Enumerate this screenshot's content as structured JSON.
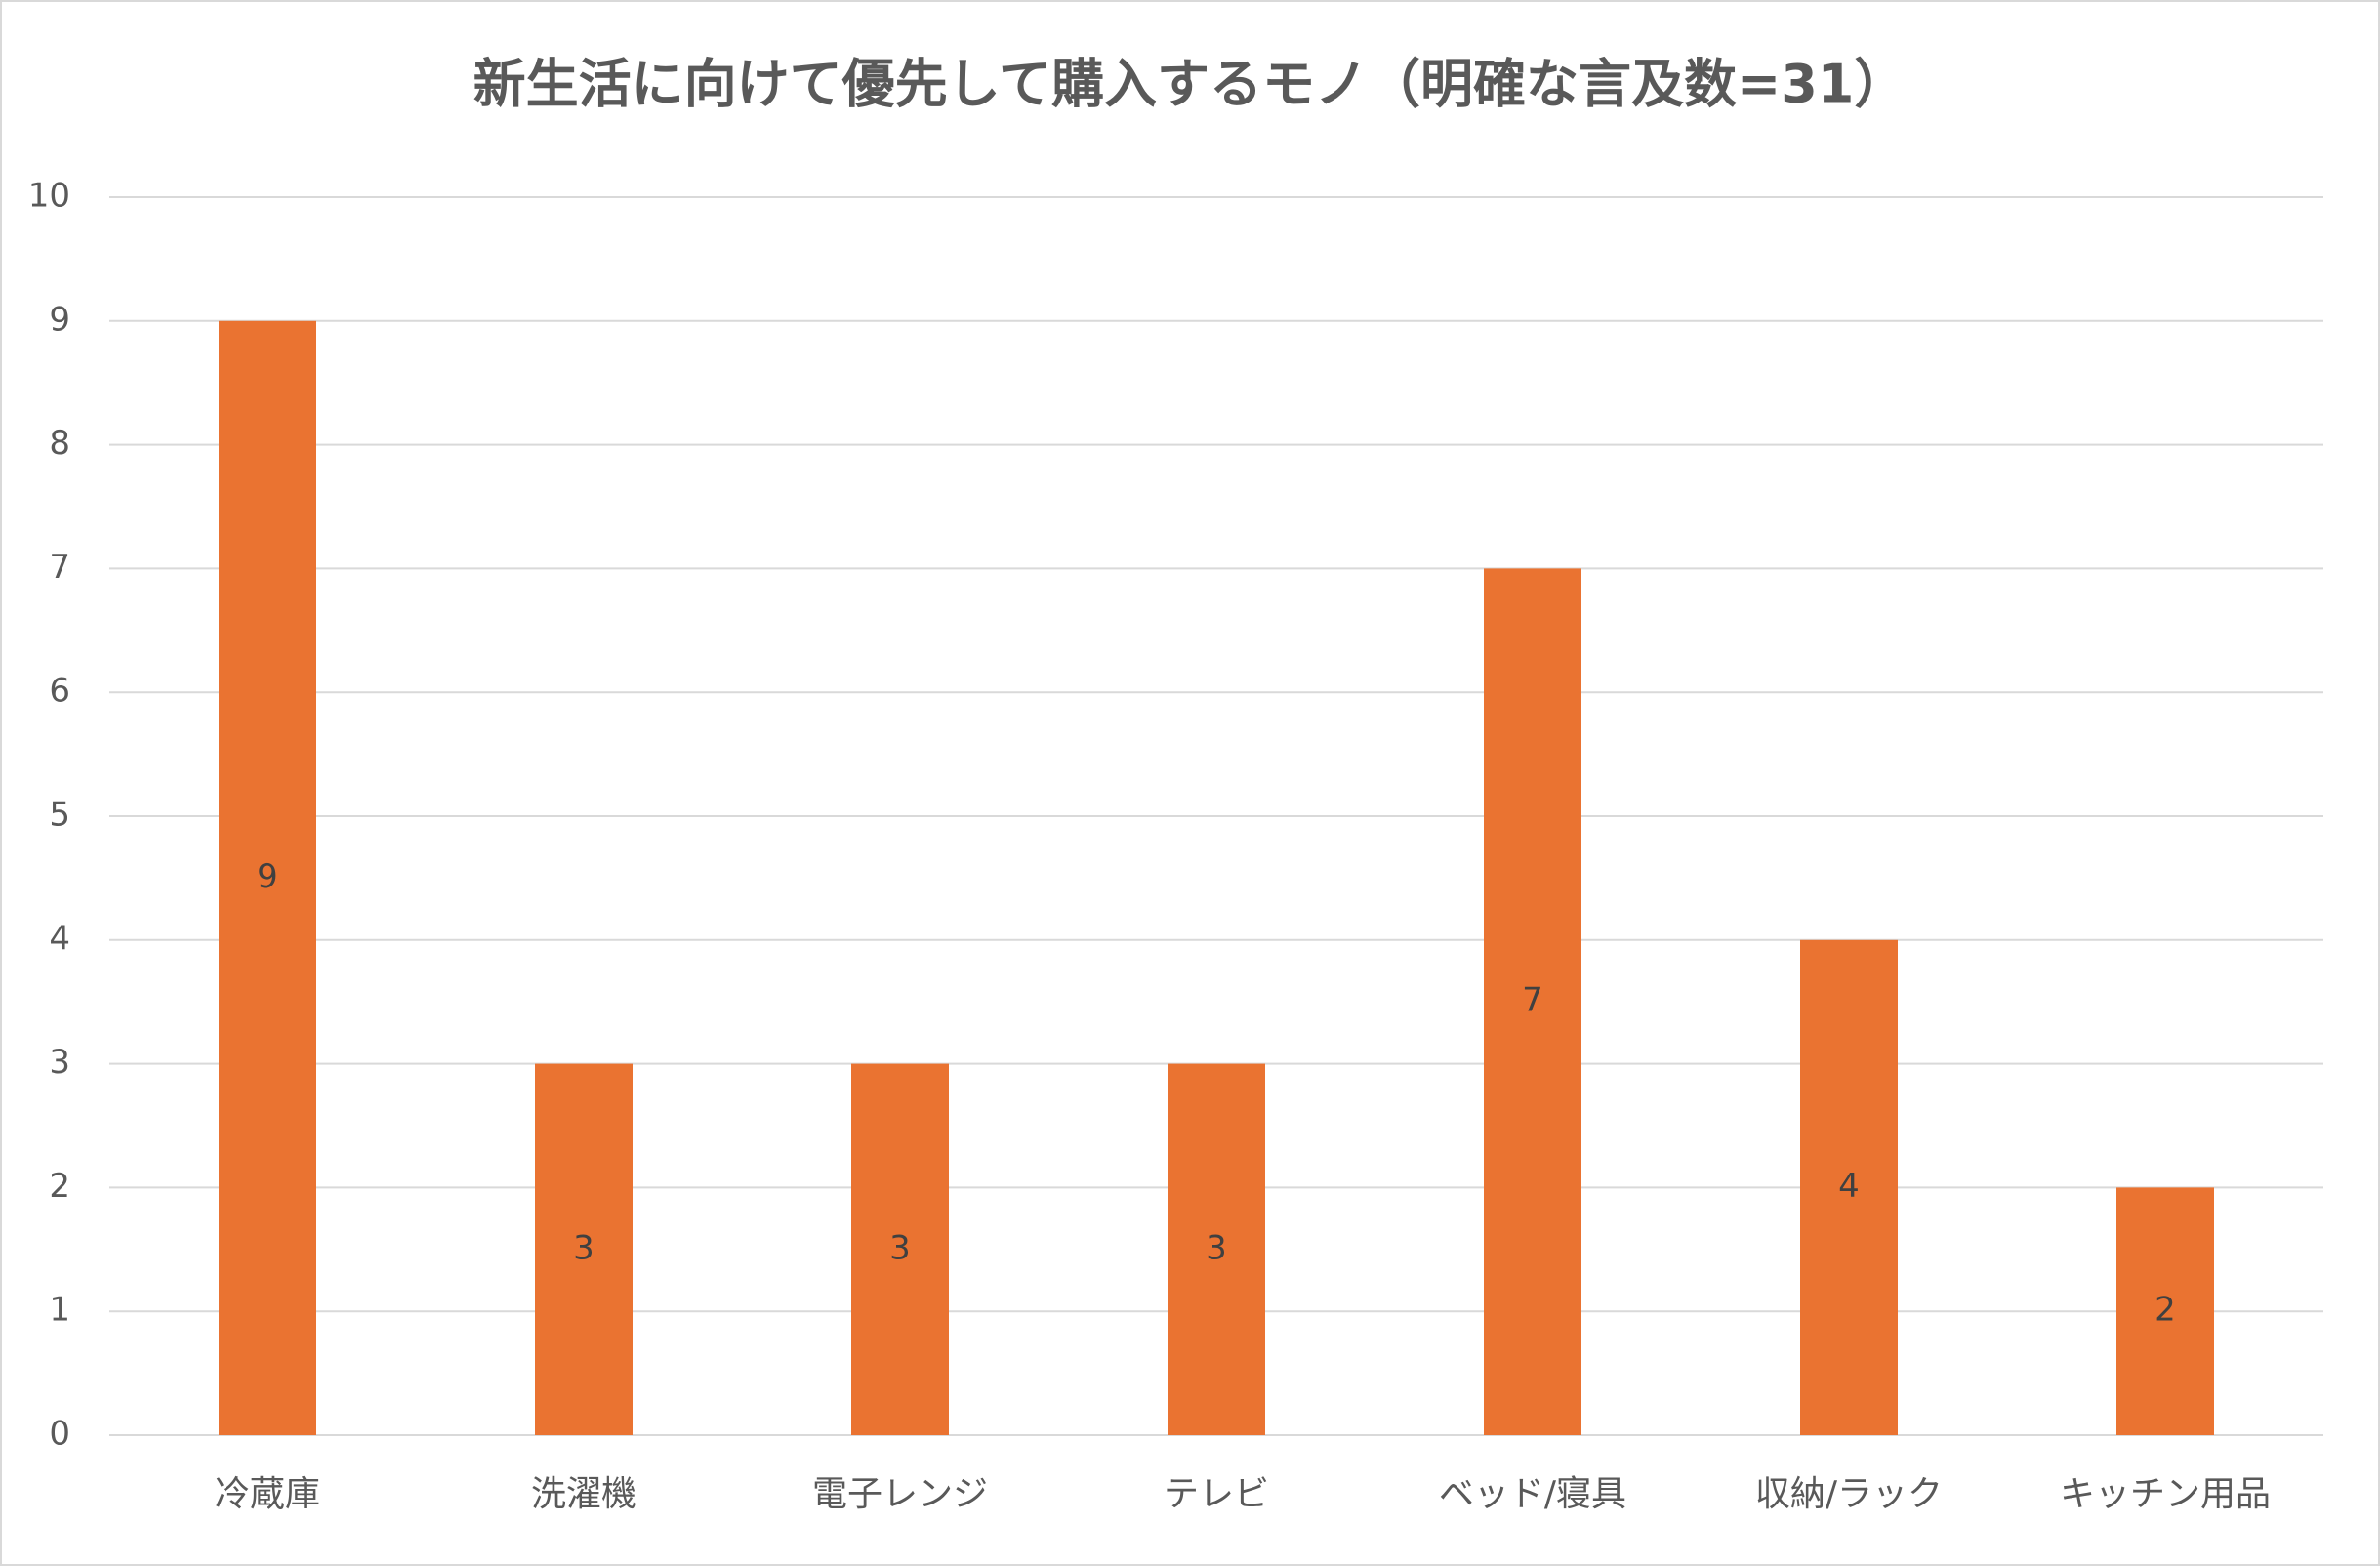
{
  "chart_data": {
    "type": "bar",
    "title": "新生活に向けて優先して購入するモノ（明確な言及数=31）",
    "categories": [
      "冷蔵庫",
      "洗濯機",
      "電子レンジ",
      "テレビ",
      "ベッド/寝具",
      "収納/ラック",
      "キッチン用品"
    ],
    "values": [
      9,
      3,
      3,
      3,
      7,
      4,
      2
    ],
    "color": "#ea7331",
    "ylim": [
      0,
      10
    ],
    "yticks": [
      0,
      1,
      2,
      3,
      4,
      5,
      6,
      7,
      8,
      9,
      10
    ],
    "grid": true
  }
}
